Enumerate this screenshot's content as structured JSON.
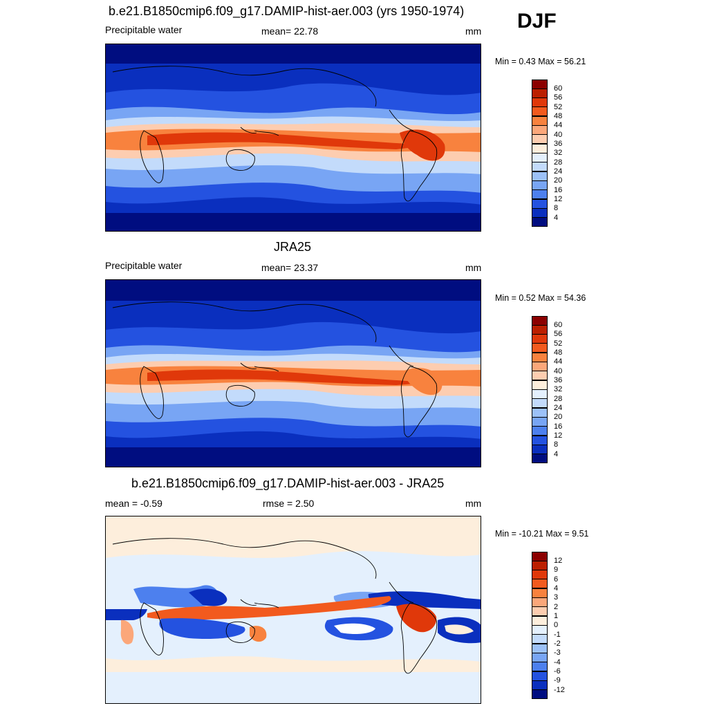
{
  "season": "DJF",
  "panels": [
    {
      "title": "b.e21.B1850cmip6.f09_g17.DAMIP-hist-aer.003 (yrs 1950-1974)",
      "left_label": "Precipitable water",
      "center_label": "mean=  22.78",
      "units": "mm",
      "minmax": "Min =   0.43 Max =  56.21",
      "scale": "full"
    },
    {
      "title": "JRA25",
      "left_label": "Precipitable water",
      "center_label": "mean=  23.37",
      "units": "mm",
      "minmax": "Min =   0.52 Max =  54.36",
      "scale": "full"
    },
    {
      "title": "b.e21.B1850cmip6.f09_g17.DAMIP-hist-aer.003 - JRA25",
      "left_label": "mean =  -0.59",
      "center_label": "rmse =   2.50",
      "units": "mm",
      "minmax": "Min = -10.21 Max =   9.51",
      "scale": "diff"
    }
  ],
  "colorbars": {
    "full": {
      "labels": [
        "60",
        "56",
        "52",
        "48",
        "44",
        "40",
        "36",
        "32",
        "28",
        "24",
        "20",
        "16",
        "12",
        "8",
        "4"
      ],
      "colors": [
        "#8b0000",
        "#bb1f00",
        "#e0380a",
        "#f25a1e",
        "#f8823e",
        "#fba77a",
        "#fdcdb0",
        "#fdeedc",
        "#e4f0fd",
        "#c3dbfb",
        "#9cc1f8",
        "#78a5f4",
        "#4d80ee",
        "#2452e0",
        "#0a2fbe",
        "#000d80"
      ]
    },
    "diff": {
      "labels": [
        "12",
        "9",
        "6",
        "4",
        "3",
        "2",
        "1",
        "0",
        "-1",
        "-2",
        "-3",
        "-4",
        "-6",
        "-9",
        "-12"
      ],
      "colors": [
        "#8b0000",
        "#bb1f00",
        "#e0380a",
        "#f25a1e",
        "#f8823e",
        "#fba77a",
        "#fdcdb0",
        "#fdeedc",
        "#e4f0fd",
        "#c3dbfb",
        "#9cc1f8",
        "#78a5f4",
        "#4d80ee",
        "#2452e0",
        "#0a2fbe",
        "#000d80"
      ]
    }
  }
}
